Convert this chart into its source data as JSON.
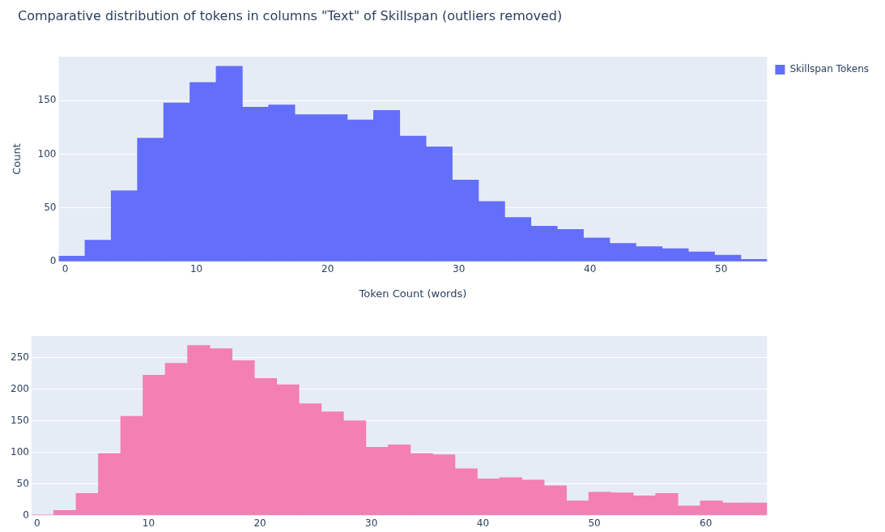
{
  "chart_data": [
    {
      "type": "histogram",
      "title": "Comparative distribution of tokens in columns \"Text\" of Skillspan (outliers removed)",
      "xlabel": "Token Count (words)",
      "ylabel": "Count",
      "bins": [
        -0.5,
        1.5,
        3.5,
        5.5,
        7.5,
        9.5,
        11.5,
        13.5,
        15.5,
        17.5,
        19.5,
        21.5,
        23.5,
        25.5,
        27.5,
        29.5,
        31.5,
        33.5,
        35.5,
        37.5,
        39.5,
        41.5,
        43.5,
        45.5,
        47.5,
        49.5,
        51.5,
        53.5
      ],
      "series": [
        {
          "name": "Skillspan Tokens",
          "color": "#636efa",
          "values": [
            5,
            20,
            66,
            115,
            148,
            167,
            182,
            144,
            146,
            137,
            137,
            132,
            141,
            117,
            107,
            76,
            56,
            41,
            33,
            30,
            22,
            17,
            14,
            12,
            9,
            6,
            2
          ]
        }
      ],
      "xlim": [
        -0.5,
        53.5
      ],
      "xticks": [
        0,
        10,
        20,
        30,
        40,
        50
      ],
      "ylim": [
        0,
        191
      ],
      "yticks": [
        0,
        50,
        100,
        150
      ],
      "grid": "y",
      "legend": "top right"
    },
    {
      "type": "histogram",
      "bins": [
        -0.5,
        1.5,
        3.5,
        5.5,
        7.5,
        9.5,
        11.5,
        13.5,
        15.5,
        17.5,
        19.5,
        21.5,
        23.5,
        25.5,
        27.5,
        29.5,
        31.5,
        33.5,
        35.5,
        37.5,
        39.5,
        41.5,
        43.5,
        45.5,
        47.5,
        49.5,
        51.5,
        53.5,
        55.5,
        57.5,
        59.5,
        61.5,
        63.5,
        65.5
      ],
      "series": [
        {
          "color": "#f47fb3",
          "values": [
            1,
            8,
            35,
            98,
            157,
            222,
            241,
            269,
            264,
            245,
            217,
            207,
            177,
            164,
            150,
            108,
            112,
            98,
            96,
            74,
            58,
            60,
            56,
            47,
            23,
            37,
            36,
            31,
            35,
            15,
            23,
            20,
            20
          ]
        }
      ],
      "xlim": [
        -0.5,
        65.5
      ],
      "xticks": [
        0,
        10,
        20,
        30,
        40,
        50,
        60
      ],
      "ylim": [
        0,
        284
      ],
      "yticks": [
        0,
        50,
        100,
        150,
        200,
        250
      ],
      "grid": "y",
      "legend": false
    }
  ]
}
